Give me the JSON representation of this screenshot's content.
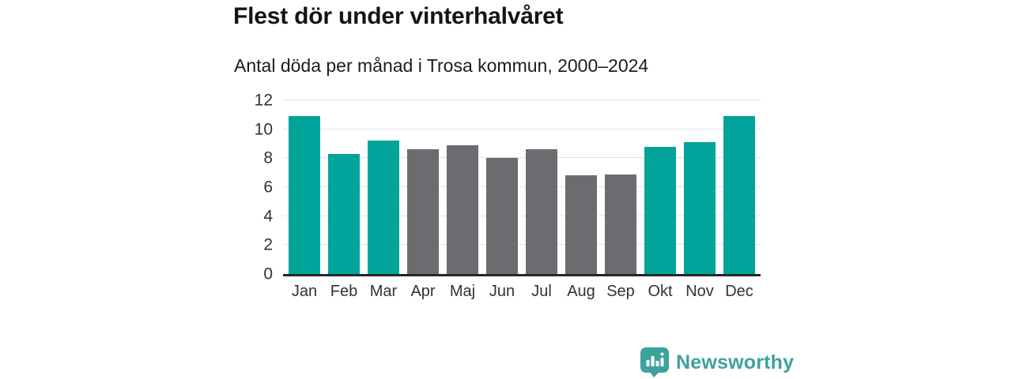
{
  "header": {
    "title": "Flest dör under vinterhalvåret",
    "subtitle": "Antal döda per månad i Trosa kommun, 2000–2024"
  },
  "chart_data": {
    "type": "bar",
    "title": "Flest dör under vinterhalvåret",
    "subtitle": "Antal döda per månad i Trosa kommun, 2000–2024",
    "categories": [
      "Jan",
      "Feb",
      "Mar",
      "Apr",
      "Maj",
      "Jun",
      "Jul",
      "Aug",
      "Sep",
      "Okt",
      "Nov",
      "Dec"
    ],
    "values": [
      10.9,
      8.3,
      9.2,
      8.6,
      8.9,
      8.0,
      8.6,
      6.8,
      6.9,
      8.8,
      9.1,
      10.9
    ],
    "colors": [
      "#00a49b",
      "#00a49b",
      "#00a49b",
      "#6c6c70",
      "#6c6c70",
      "#6c6c70",
      "#6c6c70",
      "#6c6c70",
      "#6c6c70",
      "#00a49b",
      "#00a49b",
      "#00a49b"
    ],
    "xlabel": "",
    "ylabel": "",
    "ylim": [
      0,
      12
    ],
    "yticks": [
      0,
      2,
      4,
      6,
      8,
      10,
      12
    ],
    "grid": "horizontal",
    "legend": "none"
  },
  "footer": {
    "brand": "Newsworthy",
    "logo_icon": "bar-chart-speech-bubble-icon",
    "brand_color": "#3da29c"
  },
  "colors": {
    "bar_teal": "#00a49b",
    "bar_gray": "#6c6c70",
    "gridline": "#e2e2e2",
    "axis_line": "#262626",
    "title_text": "#141414",
    "tick_text": "#333333"
  }
}
